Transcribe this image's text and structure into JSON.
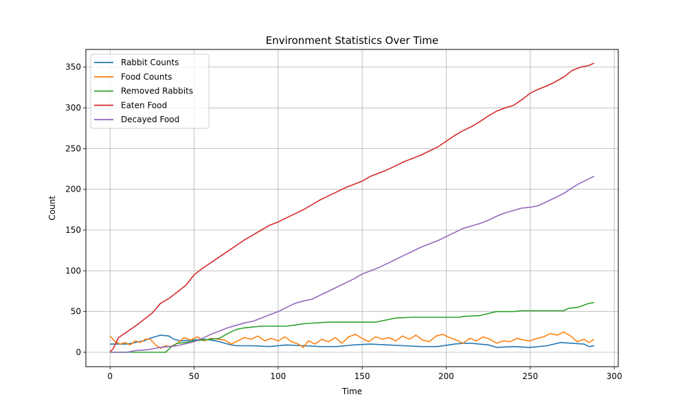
{
  "chart_data": {
    "type": "line",
    "title": "Environment Statistics Over Time",
    "xlabel": "Time",
    "ylabel": "Count",
    "xlim": [
      -14.4,
      302.4
    ],
    "ylim": [
      -17.7,
      371.7
    ],
    "xticks": [
      0,
      50,
      100,
      150,
      200,
      250,
      300
    ],
    "yticks": [
      0,
      50,
      100,
      150,
      200,
      250,
      300,
      350
    ],
    "grid": true,
    "legend_position": "top-left",
    "series": [
      {
        "name": "Rabbit Counts",
        "color": "#1f77b4",
        "points": [
          [
            0,
            10
          ],
          [
            10,
            10
          ],
          [
            20,
            14
          ],
          [
            25,
            18
          ],
          [
            30,
            21
          ],
          [
            35,
            20
          ],
          [
            38,
            16
          ],
          [
            42,
            14
          ],
          [
            50,
            15
          ],
          [
            55,
            16
          ],
          [
            60,
            15
          ],
          [
            65,
            13
          ],
          [
            70,
            10
          ],
          [
            75,
            8
          ],
          [
            85,
            8
          ],
          [
            95,
            7
          ],
          [
            105,
            9
          ],
          [
            115,
            8
          ],
          [
            125,
            7
          ],
          [
            135,
            7
          ],
          [
            145,
            9
          ],
          [
            155,
            10
          ],
          [
            165,
            9
          ],
          [
            175,
            8
          ],
          [
            185,
            7
          ],
          [
            195,
            7
          ],
          [
            205,
            10
          ],
          [
            210,
            11
          ],
          [
            215,
            11
          ],
          [
            225,
            9
          ],
          [
            230,
            6
          ],
          [
            240,
            7
          ],
          [
            250,
            6
          ],
          [
            260,
            8
          ],
          [
            268,
            12
          ],
          [
            275,
            11
          ],
          [
            282,
            10
          ],
          [
            285,
            7
          ],
          [
            288,
            8
          ]
        ]
      },
      {
        "name": "Food Counts",
        "color": "#ff7f0e",
        "points": [
          [
            0,
            20
          ],
          [
            3,
            13
          ],
          [
            6,
            10
          ],
          [
            9,
            12
          ],
          [
            12,
            9
          ],
          [
            15,
            14
          ],
          [
            18,
            12
          ],
          [
            21,
            16
          ],
          [
            24,
            16
          ],
          [
            27,
            9
          ],
          [
            30,
            5
          ],
          [
            33,
            8
          ],
          [
            36,
            7
          ],
          [
            40,
            11
          ],
          [
            44,
            18
          ],
          [
            48,
            15
          ],
          [
            52,
            19
          ],
          [
            56,
            14
          ],
          [
            60,
            17
          ],
          [
            64,
            16
          ],
          [
            68,
            15
          ],
          [
            72,
            10
          ],
          [
            76,
            14
          ],
          [
            80,
            18
          ],
          [
            84,
            16
          ],
          [
            88,
            20
          ],
          [
            92,
            14
          ],
          [
            96,
            17
          ],
          [
            100,
            14
          ],
          [
            104,
            19
          ],
          [
            108,
            13
          ],
          [
            112,
            10
          ],
          [
            115,
            6
          ],
          [
            118,
            14
          ],
          [
            122,
            10
          ],
          [
            126,
            16
          ],
          [
            130,
            13
          ],
          [
            134,
            18
          ],
          [
            138,
            11
          ],
          [
            142,
            19
          ],
          [
            146,
            22
          ],
          [
            150,
            17
          ],
          [
            154,
            13
          ],
          [
            158,
            19
          ],
          [
            162,
            16
          ],
          [
            166,
            18
          ],
          [
            170,
            14
          ],
          [
            174,
            20
          ],
          [
            178,
            16
          ],
          [
            182,
            21
          ],
          [
            186,
            15
          ],
          [
            190,
            13
          ],
          [
            194,
            20
          ],
          [
            198,
            22
          ],
          [
            202,
            18
          ],
          [
            206,
            15
          ],
          [
            210,
            11
          ],
          [
            214,
            17
          ],
          [
            218,
            14
          ],
          [
            222,
            19
          ],
          [
            226,
            16
          ],
          [
            230,
            11
          ],
          [
            234,
            14
          ],
          [
            238,
            13
          ],
          [
            242,
            17
          ],
          [
            246,
            15
          ],
          [
            250,
            14
          ],
          [
            254,
            17
          ],
          [
            258,
            19
          ],
          [
            262,
            23
          ],
          [
            266,
            21
          ],
          [
            270,
            25
          ],
          [
            274,
            20
          ],
          [
            278,
            13
          ],
          [
            282,
            16
          ],
          [
            285,
            12
          ],
          [
            288,
            16
          ]
        ]
      },
      {
        "name": "Removed Rabbits",
        "color": "#2ca02c",
        "points": [
          [
            0,
            0
          ],
          [
            33,
            0
          ],
          [
            36,
            6
          ],
          [
            40,
            11
          ],
          [
            45,
            12
          ],
          [
            50,
            14
          ],
          [
            55,
            15
          ],
          [
            60,
            16
          ],
          [
            65,
            17
          ],
          [
            70,
            23
          ],
          [
            75,
            28
          ],
          [
            80,
            30
          ],
          [
            85,
            31
          ],
          [
            90,
            32
          ],
          [
            105,
            32
          ],
          [
            112,
            34
          ],
          [
            115,
            35
          ],
          [
            130,
            37
          ],
          [
            158,
            37
          ],
          [
            170,
            42
          ],
          [
            180,
            43
          ],
          [
            208,
            43
          ],
          [
            210,
            44
          ],
          [
            220,
            45
          ],
          [
            230,
            50
          ],
          [
            240,
            50
          ],
          [
            245,
            51
          ],
          [
            270,
            51
          ],
          [
            273,
            54
          ],
          [
            278,
            55
          ],
          [
            285,
            60
          ],
          [
            288,
            61
          ]
        ]
      },
      {
        "name": "Eaten Food",
        "color": "#d62728",
        "points": [
          [
            0,
            0
          ],
          [
            2,
            5
          ],
          [
            5,
            18
          ],
          [
            10,
            25
          ],
          [
            15,
            32
          ],
          [
            20,
            40
          ],
          [
            25,
            48
          ],
          [
            30,
            60
          ],
          [
            35,
            66
          ],
          [
            40,
            74
          ],
          [
            45,
            82
          ],
          [
            50,
            95
          ],
          [
            55,
            103
          ],
          [
            60,
            110
          ],
          [
            65,
            117
          ],
          [
            70,
            124
          ],
          [
            75,
            131
          ],
          [
            80,
            138
          ],
          [
            85,
            144
          ],
          [
            90,
            150
          ],
          [
            95,
            156
          ],
          [
            100,
            160
          ],
          [
            105,
            165
          ],
          [
            110,
            170
          ],
          [
            115,
            175
          ],
          [
            120,
            181
          ],
          [
            125,
            187
          ],
          [
            130,
            192
          ],
          [
            135,
            197
          ],
          [
            140,
            202
          ],
          [
            145,
            206
          ],
          [
            150,
            210
          ],
          [
            155,
            216
          ],
          [
            160,
            220
          ],
          [
            165,
            224
          ],
          [
            170,
            229
          ],
          [
            175,
            234
          ],
          [
            180,
            238
          ],
          [
            185,
            242
          ],
          [
            190,
            247
          ],
          [
            195,
            252
          ],
          [
            200,
            259
          ],
          [
            205,
            266
          ],
          [
            210,
            272
          ],
          [
            215,
            277
          ],
          [
            220,
            283
          ],
          [
            225,
            290
          ],
          [
            230,
            296
          ],
          [
            235,
            300
          ],
          [
            240,
            303
          ],
          [
            245,
            310
          ],
          [
            250,
            318
          ],
          [
            255,
            323
          ],
          [
            260,
            327
          ],
          [
            265,
            332
          ],
          [
            270,
            338
          ],
          [
            275,
            346
          ],
          [
            280,
            350
          ],
          [
            285,
            352
          ],
          [
            288,
            355
          ]
        ]
      },
      {
        "name": "Decayed Food",
        "color": "#9467bd",
        "points": [
          [
            0,
            0
          ],
          [
            10,
            0
          ],
          [
            15,
            2
          ],
          [
            22,
            3
          ],
          [
            30,
            6
          ],
          [
            40,
            8
          ],
          [
            50,
            13
          ],
          [
            55,
            17
          ],
          [
            60,
            22
          ],
          [
            65,
            26
          ],
          [
            70,
            30
          ],
          [
            75,
            33
          ],
          [
            80,
            36
          ],
          [
            85,
            38
          ],
          [
            90,
            42
          ],
          [
            95,
            46
          ],
          [
            100,
            50
          ],
          [
            105,
            55
          ],
          [
            110,
            60
          ],
          [
            115,
            63
          ],
          [
            120,
            65
          ],
          [
            125,
            70
          ],
          [
            130,
            75
          ],
          [
            135,
            80
          ],
          [
            140,
            85
          ],
          [
            145,
            90
          ],
          [
            150,
            96
          ],
          [
            155,
            100
          ],
          [
            160,
            104
          ],
          [
            165,
            109
          ],
          [
            170,
            114
          ],
          [
            175,
            119
          ],
          [
            180,
            124
          ],
          [
            185,
            129
          ],
          [
            190,
            133
          ],
          [
            195,
            137
          ],
          [
            200,
            142
          ],
          [
            205,
            147
          ],
          [
            210,
            152
          ],
          [
            215,
            155
          ],
          [
            220,
            158
          ],
          [
            225,
            162
          ],
          [
            230,
            167
          ],
          [
            235,
            171
          ],
          [
            240,
            174
          ],
          [
            245,
            177
          ],
          [
            250,
            178
          ],
          [
            255,
            180
          ],
          [
            260,
            185
          ],
          [
            265,
            190
          ],
          [
            270,
            195
          ],
          [
            275,
            202
          ],
          [
            280,
            208
          ],
          [
            285,
            213
          ],
          [
            288,
            216
          ]
        ]
      }
    ]
  }
}
